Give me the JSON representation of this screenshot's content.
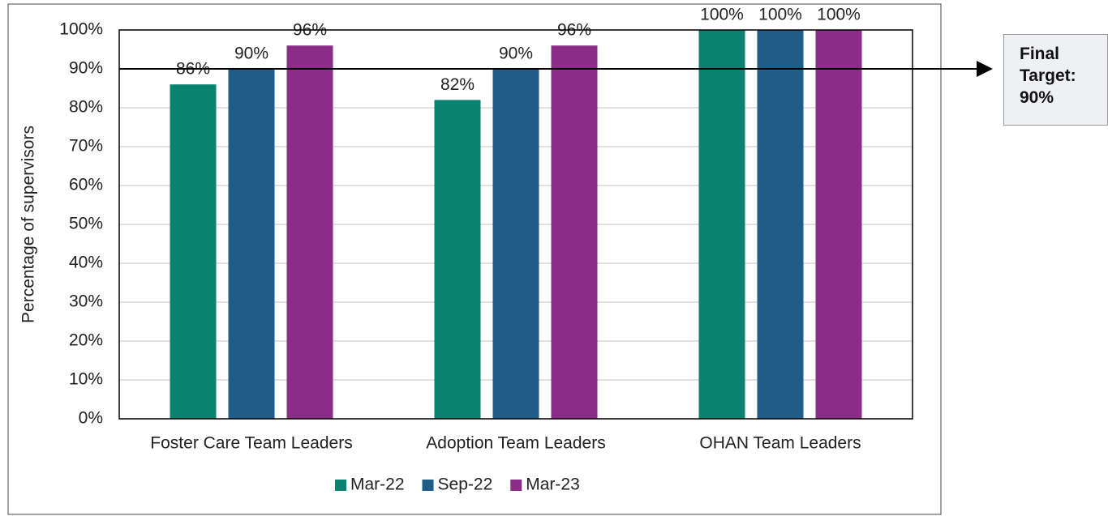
{
  "chart_data": {
    "type": "bar",
    "y_axis_label": "Percentage of supervisors",
    "categories": [
      "Foster Care Team Leaders",
      "Adoption Team Leaders",
      "OHAN Team Leaders"
    ],
    "series": [
      {
        "name": "Mar-22",
        "color": "#0a8270",
        "values": [
          86,
          82,
          100
        ],
        "value_labels": [
          "86%",
          "82%",
          "100%"
        ]
      },
      {
        "name": "Sep-22",
        "color": "#1f5c87",
        "values": [
          90,
          90,
          100
        ],
        "value_labels": [
          "90%",
          "90%",
          "100%"
        ]
      },
      {
        "name": "Mar-23",
        "color": "#8b2d87",
        "values": [
          96,
          96,
          100
        ],
        "value_labels": [
          "96%",
          "96%",
          "100%"
        ]
      }
    ],
    "ylim": [
      0,
      100
    ],
    "yticks": [
      {
        "value": 0,
        "label": "0%"
      },
      {
        "value": 10,
        "label": "10%"
      },
      {
        "value": 20,
        "label": "20%"
      },
      {
        "value": 30,
        "label": "30%"
      },
      {
        "value": 40,
        "label": "40%"
      },
      {
        "value": 50,
        "label": "50%"
      },
      {
        "value": 60,
        "label": "60%"
      },
      {
        "value": 70,
        "label": "70%"
      },
      {
        "value": 80,
        "label": "80%"
      },
      {
        "value": 90,
        "label": "90%"
      },
      {
        "value": 100,
        "label": "100%"
      }
    ],
    "grid": true,
    "legend": "bottom",
    "target": {
      "value": 90,
      "label": "Final Target: 90%"
    }
  }
}
